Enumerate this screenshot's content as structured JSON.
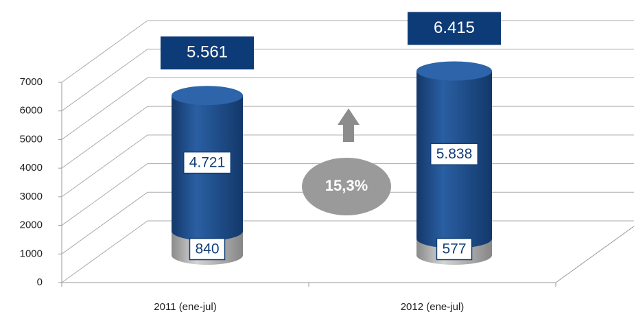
{
  "chart_data": {
    "type": "cylinder-stacked",
    "categories": [
      "2011 (ene-jul)",
      "2012 (ene-jul)"
    ],
    "series": [
      {
        "color": "#a8a8a8",
        "values": [
          840,
          577
        ],
        "value_labels": [
          "840",
          "577"
        ]
      },
      {
        "color": "#1f4f8f",
        "values": [
          4721,
          5838
        ],
        "value_labels": [
          "4.721",
          "5.838"
        ]
      }
    ],
    "totals": {
      "values": [
        5561,
        6415
      ],
      "value_labels": [
        "5.561",
        "6.415"
      ]
    },
    "annotation": {
      "value": 15.3,
      "label": "15,3%"
    },
    "ylim": [
      0,
      7000
    ],
    "yticks": [
      0,
      1000,
      2000,
      3000,
      4000,
      5000,
      6000,
      7000
    ],
    "grid": true
  }
}
